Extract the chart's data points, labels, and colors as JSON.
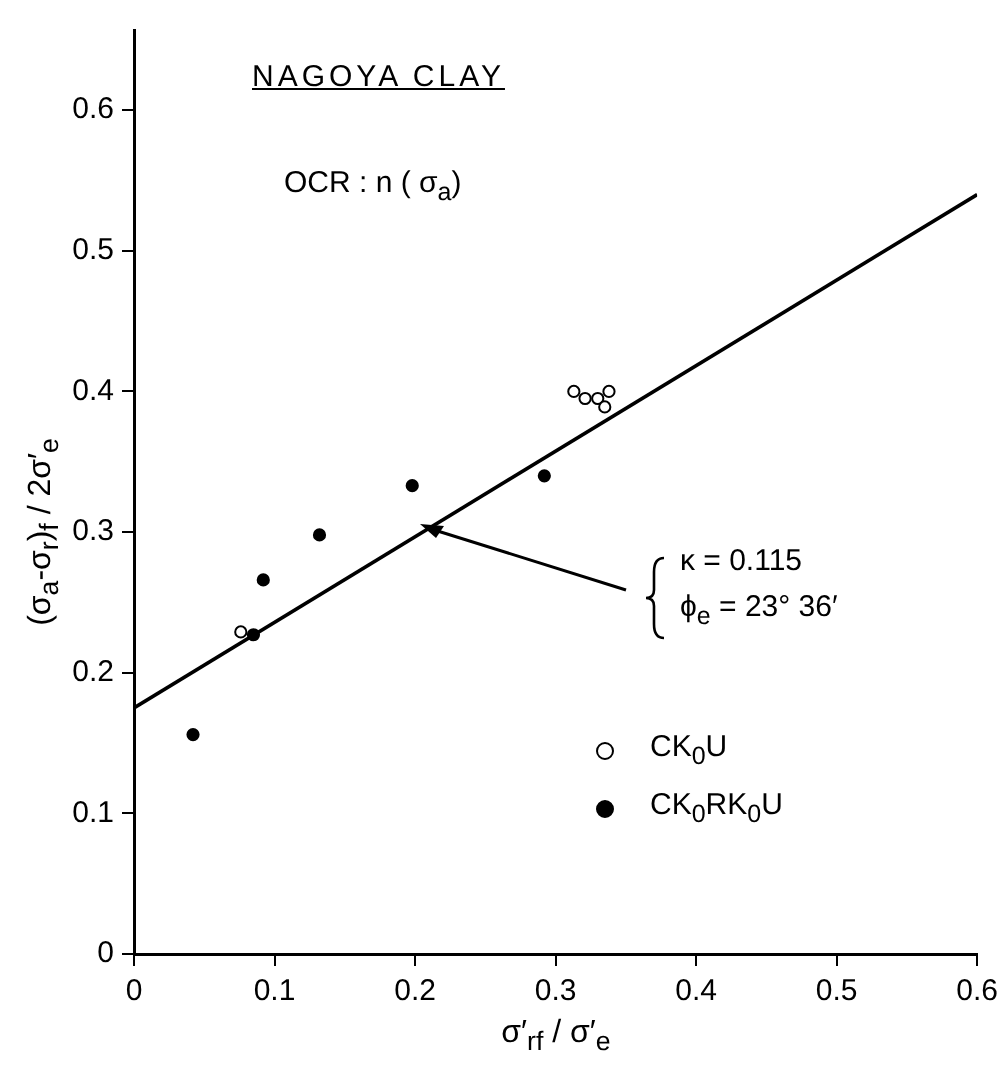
{
  "chart_data": {
    "type": "scatter",
    "title": "NAGOYA CLAY",
    "subtitle": "OCR : n ( σ$_{a}$)",
    "xlabel": "σ′$_{rf}$ / σ′$_{e}$",
    "ylabel": "(σ$_{a}$-σ$_{r}$)$_{f}$ / 2σ′$_{e}$",
    "annotations": [
      "κ = 0.115",
      "ϕ$_{e}$ = 23° 36′"
    ],
    "xlim": [
      0,
      0.6
    ],
    "xticks": [
      0,
      0.1,
      0.2,
      0.3,
      0.4,
      0.5,
      0.6
    ],
    "ylim": [
      0,
      0.657
    ],
    "yticks": [
      0,
      0.1,
      0.2,
      0.3,
      0.4,
      0.5,
      0.6
    ],
    "grid": false,
    "legend": "right",
    "marker": "circle",
    "series": [
      {
        "name": "CK$_{0}$U",
        "color": "#ffffff",
        "x": [
          0.076,
          0.313,
          0.321,
          0.33,
          0.338,
          0.335
        ],
        "values": [
          0.229,
          0.4,
          0.395,
          0.395,
          0.4,
          0.389
        ]
      },
      {
        "name": "CK$_{0}$RK$_{0}$U",
        "color": "#000000",
        "x": [
          0.042,
          0.085,
          0.092,
          0.132,
          0.198,
          0.292
        ],
        "values": [
          0.156,
          0.227,
          0.266,
          0.298,
          0.333,
          0.34
        ]
      },
      {
        "type": "line",
        "color": "#000000",
        "x": [
          0,
          0.6
        ],
        "values": [
          0.175,
          0.54
        ],
        "line_style": "solid",
        "marker": "none"
      }
    ]
  }
}
